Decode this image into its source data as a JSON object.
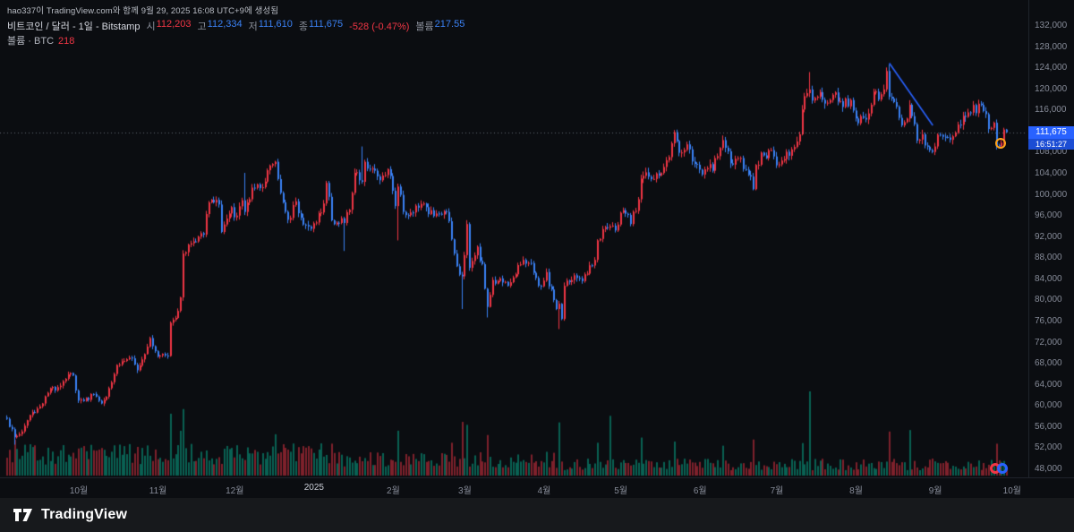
{
  "attribution": "hao337이 TradingView.com와 함께 9월 29, 2025 16:08 UTC+9에 생성됨",
  "legend": {
    "symbol": "비트코인 / 달러 - 1일 - Bitstamp",
    "open_label": "시",
    "open": "112,203",
    "high_label": "고",
    "high": "112,334",
    "low_label": "저",
    "low": "111,610",
    "close_label": "종",
    "close": "111,675",
    "change": "-528 (-0.47%)",
    "volume_label": "볼륨",
    "volume": "217.55",
    "row2_label": "볼륨 · BTC",
    "row2_value": "218"
  },
  "price_badge": {
    "price": "111,675",
    "countdown": "16:51:27"
  },
  "footer": {
    "brand": "TradingView"
  },
  "colors": {
    "background": "#0b0d11",
    "up_candle": "#f23645",
    "down_candle": "#3b82f6",
    "volume_up": "rgba(8,153,129,0.6)",
    "volume_down": "rgba(242,54,69,0.5)",
    "accent_blue": "#2962ff",
    "trendline": "#2962ff",
    "marker_orange": "#ffa21a",
    "axis_text": "#868b98",
    "price_line": "rgba(170,178,192,0.55)"
  },
  "chart_data": {
    "type": "candlestick",
    "title": "비트코인 / 달러 - 1일 - Bitstamp",
    "interval": "1일",
    "exchange": "Bitstamp",
    "last": {
      "open": 112203,
      "high": 112334,
      "low": 111610,
      "close": 111675,
      "change": -528,
      "change_pct": -0.47,
      "volume_btc": 217.55
    },
    "y_axis": {
      "min": 48000,
      "max": 132000,
      "step": 4000,
      "labels": [
        "132,000",
        "128,000",
        "124,000",
        "120,000",
        "116,000",
        "112,000",
        "108,000",
        "104,000",
        "100,000",
        "96,000",
        "92,000",
        "88,000",
        "84,000",
        "80,000",
        "76,000",
        "72,000",
        "68,000",
        "64,000",
        "60,000",
        "56,000",
        "52,000",
        "48,000"
      ]
    },
    "x_axis": {
      "labels": [
        "10월",
        "11월",
        "12월",
        "2025",
        "2월",
        "3월",
        "4월",
        "5월",
        "6월",
        "7월",
        "8월",
        "9월",
        "10월"
      ],
      "label_days": [
        28,
        59,
        89,
        120,
        151,
        179,
        210,
        240,
        271,
        301,
        332,
        363,
        393
      ]
    },
    "days_total": 392,
    "anchors": [
      [
        0,
        57400
      ],
      [
        3,
        53900
      ],
      [
        6,
        55000
      ],
      [
        9,
        58100
      ],
      [
        14,
        60300
      ],
      [
        17,
        63200
      ],
      [
        20,
        63400
      ],
      [
        24,
        65800
      ],
      [
        26,
        65600
      ],
      [
        28,
        60840
      ],
      [
        30,
        60760
      ],
      [
        34,
        62100
      ],
      [
        37,
        60300
      ],
      [
        40,
        63200
      ],
      [
        43,
        67600
      ],
      [
        48,
        69000
      ],
      [
        51,
        66600
      ],
      [
        56,
        72700
      ],
      [
        58,
        70200
      ],
      [
        60,
        69400
      ],
      [
        63,
        69300
      ],
      [
        64,
        75600
      ],
      [
        66,
        76500
      ],
      [
        68,
        80400
      ],
      [
        69,
        88700
      ],
      [
        71,
        90400
      ],
      [
        74,
        91000
      ],
      [
        77,
        92300
      ],
      [
        79,
        98400
      ],
      [
        80,
        98900
      ],
      [
        83,
        98000
      ],
      [
        84,
        92800
      ],
      [
        88,
        97500
      ],
      [
        90,
        95900
      ],
      [
        92,
        98800
      ],
      [
        93,
        96600
      ],
      [
        96,
        101200
      ],
      [
        99,
        101100
      ],
      [
        102,
        104500
      ],
      [
        105,
        106100
      ],
      [
        107,
        100200
      ],
      [
        110,
        95100
      ],
      [
        113,
        98600
      ],
      [
        116,
        94200
      ],
      [
        119,
        93400
      ],
      [
        121,
        94600
      ],
      [
        124,
        98200
      ],
      [
        125,
        102100
      ],
      [
        127,
        95000
      ],
      [
        130,
        94500
      ],
      [
        132,
        94500
      ],
      [
        134,
        97000
      ],
      [
        136,
        104000
      ],
      [
        139,
        102300
      ],
      [
        140,
        106100
      ],
      [
        143,
        104800
      ],
      [
        146,
        102600
      ],
      [
        149,
        104700
      ],
      [
        151,
        100600
      ],
      [
        152,
        97700
      ],
      [
        153,
        101400
      ],
      [
        155,
        96600
      ],
      [
        158,
        96500
      ],
      [
        161,
        97400
      ],
      [
        164,
        97500
      ],
      [
        167,
        95800
      ],
      [
        170,
        96100
      ],
      [
        172,
        96600
      ],
      [
        174,
        91400
      ],
      [
        175,
        88700
      ],
      [
        177,
        84700
      ],
      [
        178,
        84400
      ],
      [
        180,
        94300
      ],
      [
        181,
        86000
      ],
      [
        182,
        87300
      ],
      [
        184,
        90000
      ],
      [
        186,
        86700
      ],
      [
        188,
        78600
      ],
      [
        190,
        83700
      ],
      [
        193,
        84000
      ],
      [
        196,
        82600
      ],
      [
        198,
        84200
      ],
      [
        202,
        87500
      ],
      [
        205,
        86900
      ],
      [
        208,
        82600
      ],
      [
        209,
        82500
      ],
      [
        211,
        85200
      ],
      [
        212,
        82500
      ],
      [
        215,
        78200
      ],
      [
        216,
        79200
      ],
      [
        217,
        76300
      ],
      [
        218,
        82600
      ],
      [
        221,
        83700
      ],
      [
        224,
        84000
      ],
      [
        227,
        84900
      ],
      [
        230,
        87500
      ],
      [
        231,
        91200
      ],
      [
        234,
        93700
      ],
      [
        237,
        94000
      ],
      [
        239,
        94200
      ],
      [
        241,
        96900
      ],
      [
        244,
        94300
      ],
      [
        246,
        96800
      ],
      [
        247,
        99000
      ],
      [
        248,
        102900
      ],
      [
        250,
        104100
      ],
      [
        252,
        102800
      ],
      [
        255,
        103500
      ],
      [
        258,
        106400
      ],
      [
        260,
        109600
      ],
      [
        261,
        111700
      ],
      [
        263,
        107800
      ],
      [
        266,
        109400
      ],
      [
        269,
        105700
      ],
      [
        271,
        104600
      ],
      [
        274,
        104900
      ],
      [
        276,
        104400
      ],
      [
        280,
        110200
      ],
      [
        283,
        105800
      ],
      [
        286,
        106800
      ],
      [
        289,
        104600
      ],
      [
        291,
        103300
      ],
      [
        292,
        100900
      ],
      [
        293,
        105500
      ],
      [
        296,
        107300
      ],
      [
        299,
        108300
      ],
      [
        300,
        107100
      ],
      [
        302,
        105600
      ],
      [
        305,
        108000
      ],
      [
        308,
        108900
      ],
      [
        310,
        111300
      ],
      [
        311,
        116000
      ],
      [
        313,
        119100
      ],
      [
        314,
        119800
      ],
      [
        315,
        117700
      ],
      [
        318,
        119300
      ],
      [
        321,
        117300
      ],
      [
        323,
        118800
      ],
      [
        326,
        117600
      ],
      [
        328,
        118100
      ],
      [
        330,
        117800
      ],
      [
        331,
        115800
      ],
      [
        333,
        113400
      ],
      [
        336,
        114100
      ],
      [
        338,
        116900
      ],
      [
        340,
        119400
      ],
      [
        342,
        118900
      ],
      [
        344,
        123300
      ],
      [
        345,
        118400
      ],
      [
        347,
        117400
      ],
      [
        350,
        113000
      ],
      [
        352,
        114300
      ],
      [
        353,
        116900
      ],
      [
        356,
        110100
      ],
      [
        358,
        111300
      ],
      [
        361,
        108300
      ],
      [
        363,
        109000
      ],
      [
        365,
        111200
      ],
      [
        368,
        110700
      ],
      [
        371,
        111600
      ],
      [
        374,
        114800
      ],
      [
        377,
        115400
      ],
      [
        380,
        117100
      ],
      [
        382,
        115700
      ],
      [
        384,
        112300
      ],
      [
        386,
        113500
      ],
      [
        387,
        109200
      ],
      [
        389,
        109700
      ],
      [
        390,
        112200
      ],
      [
        391,
        111675
      ]
    ],
    "wick_overrides": {
      "3": {
        "low": 52500
      },
      "93": {
        "high": 104000
      },
      "132": {
        "low": 89200
      },
      "139": {
        "high": 109000
      },
      "153": {
        "low": 91200
      },
      "178": {
        "low": 78200
      },
      "188": {
        "low": 76600
      },
      "216": {
        "low": 74400
      },
      "261": {
        "high": 112000
      },
      "314": {
        "high": 123100
      },
      "344": {
        "high": 123900
      },
      "345": {
        "high": 124500
      }
    },
    "volume_spikes": {
      "3": 26,
      "64": 34,
      "68": 26,
      "69": 40,
      "105": 20,
      "153": 30,
      "174": 24,
      "178": 46,
      "180": 38,
      "188": 30,
      "216": 44,
      "231": 26,
      "236": 60,
      "248": 28,
      "261": 30,
      "280": 22,
      "292": 26,
      "311": 30,
      "314": 78,
      "345": 38,
      "353": 34,
      "387": 28
    },
    "trendline": {
      "day1": 345,
      "price1": 124800,
      "day2": 362,
      "price2": 113000
    },
    "circle_marker": {
      "day": 389,
      "price": 109500
    },
    "current_price_line": 111675,
    "legend_position": "top-left",
    "grid": false
  }
}
